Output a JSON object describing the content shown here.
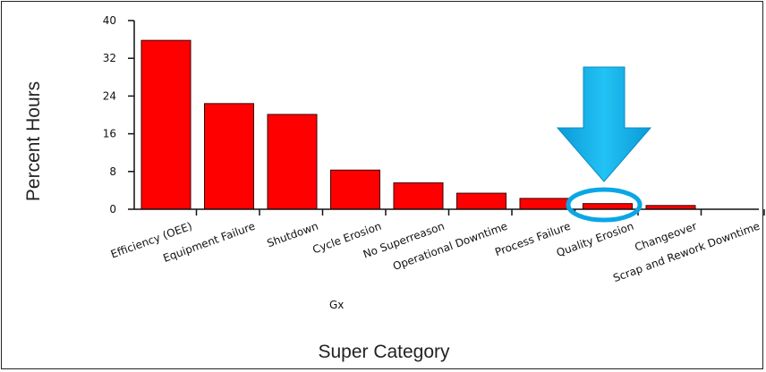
{
  "chart_data": {
    "type": "bar",
    "xlabel": "Super Category",
    "ylabel": "Percent Hours",
    "ylim": [
      0,
      40
    ],
    "yticks": [
      0,
      8,
      16,
      24,
      32,
      40
    ],
    "categories": [
      "Efficiency (OEE)",
      "Equipment Failure",
      "Shutdown",
      "Cycle Erosion",
      "No Superreason",
      "Operational Downtime",
      "Process Failure",
      "Quality Erosion",
      "Changeover",
      "Scrap and Rework Downtime"
    ],
    "values": [
      35.8,
      22.4,
      20.1,
      8.3,
      5.6,
      3.4,
      2.3,
      1.2,
      0.8,
      0
    ],
    "bar_color": "#ff0000",
    "grid": false,
    "annotations": [
      {
        "kind": "arrow",
        "color": "#00aaee",
        "target_category": "Quality Erosion"
      },
      {
        "kind": "ellipse",
        "color": "#00aaee",
        "target_category": "Quality Erosion"
      }
    ],
    "stray_text": "Gx"
  }
}
